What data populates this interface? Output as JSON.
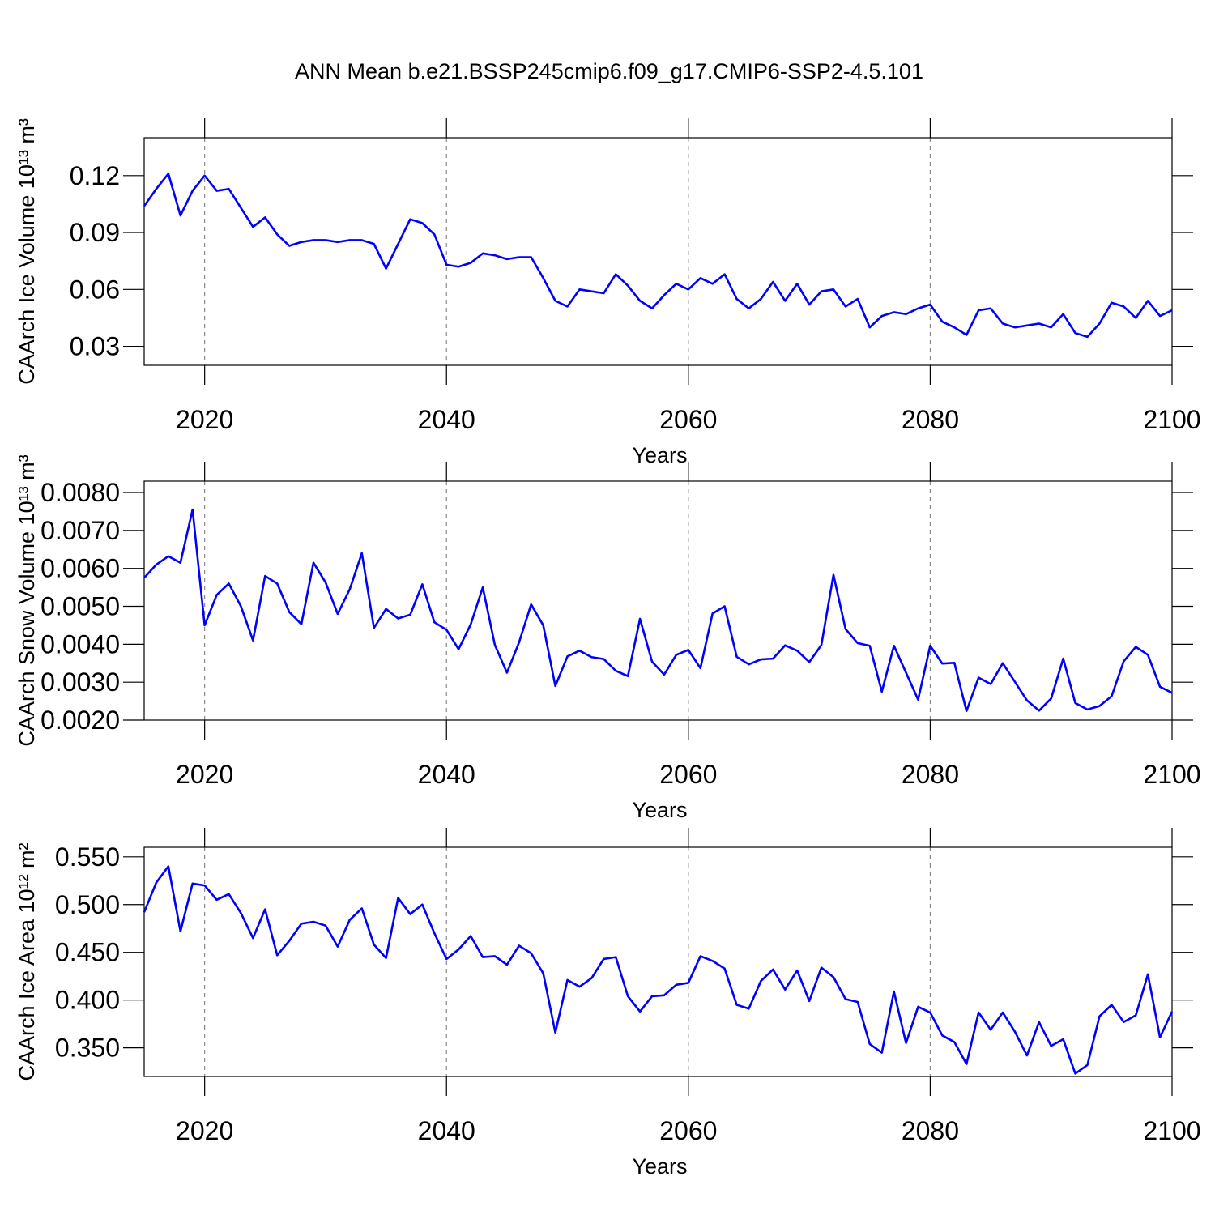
{
  "title": "ANN Mean b.e21.BSSP245cmip6.f09_g17.CMIP6-SSP2-4.5.101",
  "chart_data": [
    {
      "type": "line",
      "ylabel": "CAArch Ice Volume 10¹³ m³",
      "xlabel": "Years",
      "color": "#0000ff",
      "grid": true,
      "xlim": [
        2015,
        2100
      ],
      "xticks": [
        2020,
        2040,
        2060,
        2080,
        2100
      ],
      "ylim": [
        0.02,
        0.14
      ],
      "yticks": [
        0.03,
        0.06,
        0.09,
        0.12
      ],
      "x": [
        2015,
        2016,
        2017,
        2018,
        2019,
        2020,
        2021,
        2022,
        2023,
        2024,
        2025,
        2026,
        2027,
        2028,
        2029,
        2030,
        2031,
        2032,
        2033,
        2034,
        2035,
        2036,
        2037,
        2038,
        2039,
        2040,
        2041,
        2042,
        2043,
        2044,
        2045,
        2046,
        2047,
        2048,
        2049,
        2050,
        2051,
        2052,
        2053,
        2054,
        2055,
        2056,
        2057,
        2058,
        2059,
        2060,
        2061,
        2062,
        2063,
        2064,
        2065,
        2066,
        2067,
        2068,
        2069,
        2070,
        2071,
        2072,
        2073,
        2074,
        2075,
        2076,
        2077,
        2078,
        2079,
        2080,
        2081,
        2082,
        2083,
        2084,
        2085,
        2086,
        2087,
        2088,
        2089,
        2090,
        2091,
        2092,
        2093,
        2094,
        2095,
        2096,
        2097,
        2098,
        2099,
        2100
      ],
      "values": [
        0.104,
        0.113,
        0.121,
        0.099,
        0.112,
        0.12,
        0.112,
        0.113,
        0.103,
        0.093,
        0.098,
        0.089,
        0.083,
        0.085,
        0.086,
        0.086,
        0.085,
        0.086,
        0.086,
        0.084,
        0.071,
        0.084,
        0.097,
        0.095,
        0.089,
        0.073,
        0.072,
        0.074,
        0.079,
        0.078,
        0.076,
        0.077,
        0.077,
        0.066,
        0.054,
        0.051,
        0.06,
        0.059,
        0.058,
        0.068,
        0.062,
        0.054,
        0.05,
        0.057,
        0.063,
        0.06,
        0.066,
        0.063,
        0.068,
        0.055,
        0.05,
        0.055,
        0.064,
        0.054,
        0.063,
        0.052,
        0.059,
        0.06,
        0.051,
        0.055,
        0.04,
        0.046,
        0.048,
        0.047,
        0.05,
        0.052,
        0.043,
        0.04,
        0.036,
        0.049,
        0.05,
        0.042,
        0.04,
        0.041,
        0.042,
        0.04,
        0.047,
        0.037,
        0.035,
        0.042,
        0.053,
        0.051,
        0.045,
        0.054,
        0.046,
        0.049
      ]
    },
    {
      "type": "line",
      "ylabel": "CAArch Snow Volume 10¹³ m³",
      "xlabel": "Years",
      "color": "#0000ff",
      "grid": true,
      "xlim": [
        2015,
        2100
      ],
      "xticks": [
        2020,
        2040,
        2060,
        2080,
        2100
      ],
      "ylim": [
        0.002,
        0.0083
      ],
      "yticks": [
        {
          "value": 0.002,
          "label": "0.0020"
        },
        {
          "value": 0.003,
          "label": "0.0030"
        },
        {
          "value": 0.004,
          "label": "0.0040"
        },
        {
          "value": 0.005,
          "label": "0.0050"
        },
        {
          "value": 0.006,
          "label": "0.0060"
        },
        {
          "value": 0.007,
          "label": "0.0070"
        },
        {
          "value": 0.008,
          "label": "0.0080"
        }
      ],
      "x": [
        2015,
        2016,
        2017,
        2018,
        2019,
        2020,
        2021,
        2022,
        2023,
        2024,
        2025,
        2026,
        2027,
        2028,
        2029,
        2030,
        2031,
        2032,
        2033,
        2034,
        2035,
        2036,
        2037,
        2038,
        2039,
        2040,
        2041,
        2042,
        2043,
        2044,
        2045,
        2046,
        2047,
        2048,
        2049,
        2050,
        2051,
        2052,
        2053,
        2054,
        2055,
        2056,
        2057,
        2058,
        2059,
        2060,
        2061,
        2062,
        2063,
        2064,
        2065,
        2066,
        2067,
        2068,
        2069,
        2070,
        2071,
        2072,
        2073,
        2074,
        2075,
        2076,
        2077,
        2078,
        2079,
        2080,
        2081,
        2082,
        2083,
        2084,
        2085,
        2086,
        2087,
        2088,
        2089,
        2090,
        2091,
        2092,
        2093,
        2094,
        2095,
        2096,
        2097,
        2098,
        2099,
        2100
      ],
      "values": [
        0.00575,
        0.0061,
        0.00632,
        0.00615,
        0.00755,
        0.0045,
        0.0053,
        0.0056,
        0.005,
        0.0041,
        0.0058,
        0.0056,
        0.00485,
        0.00453,
        0.00615,
        0.00563,
        0.0048,
        0.00545,
        0.0064,
        0.00443,
        0.00493,
        0.00468,
        0.00478,
        0.00558,
        0.00458,
        0.00438,
        0.00387,
        0.00452,
        0.0055,
        0.00398,
        0.00325,
        0.00405,
        0.00505,
        0.0045,
        0.0029,
        0.00368,
        0.00383,
        0.00366,
        0.00361,
        0.0033,
        0.00316,
        0.00467,
        0.00354,
        0.0032,
        0.00372,
        0.00385,
        0.00337,
        0.00481,
        0.005,
        0.00367,
        0.00347,
        0.0036,
        0.00362,
        0.00397,
        0.00383,
        0.00353,
        0.00398,
        0.00583,
        0.0044,
        0.00403,
        0.00396,
        0.00275,
        0.00396,
        0.00325,
        0.00254,
        0.00396,
        0.00349,
        0.00351,
        0.00224,
        0.00312,
        0.00295,
        0.0035,
        0.00301,
        0.00252,
        0.00225,
        0.00257,
        0.00362,
        0.00245,
        0.00228,
        0.00237,
        0.00263,
        0.00355,
        0.00393,
        0.00372,
        0.00288,
        0.00272
      ]
    },
    {
      "type": "line",
      "ylabel": "CAArch Ice Area 10¹² m²",
      "xlabel": "Years",
      "color": "#0000ff",
      "grid": true,
      "xlim": [
        2015,
        2100
      ],
      "xticks": [
        2020,
        2040,
        2060,
        2080,
        2100
      ],
      "ylim": [
        0.32,
        0.56
      ],
      "yticks": [
        {
          "value": 0.35,
          "label": "0.350"
        },
        {
          "value": 0.4,
          "label": "0.400"
        },
        {
          "value": 0.45,
          "label": "0.450"
        },
        {
          "value": 0.5,
          "label": "0.500"
        },
        {
          "value": 0.55,
          "label": "0.550"
        }
      ],
      "x": [
        2015,
        2016,
        2017,
        2018,
        2019,
        2020,
        2021,
        2022,
        2023,
        2024,
        2025,
        2026,
        2027,
        2028,
        2029,
        2030,
        2031,
        2032,
        2033,
        2034,
        2035,
        2036,
        2037,
        2038,
        2039,
        2040,
        2041,
        2042,
        2043,
        2044,
        2045,
        2046,
        2047,
        2048,
        2049,
        2050,
        2051,
        2052,
        2053,
        2054,
        2055,
        2056,
        2057,
        2058,
        2059,
        2060,
        2061,
        2062,
        2063,
        2064,
        2065,
        2066,
        2067,
        2068,
        2069,
        2070,
        2071,
        2072,
        2073,
        2074,
        2075,
        2076,
        2077,
        2078,
        2079,
        2080,
        2081,
        2082,
        2083,
        2084,
        2085,
        2086,
        2087,
        2088,
        2089,
        2090,
        2091,
        2092,
        2093,
        2094,
        2095,
        2096,
        2097,
        2098,
        2099,
        2100
      ],
      "values": [
        0.492,
        0.523,
        0.54,
        0.472,
        0.522,
        0.52,
        0.505,
        0.511,
        0.491,
        0.465,
        0.495,
        0.447,
        0.462,
        0.48,
        0.482,
        0.478,
        0.456,
        0.484,
        0.496,
        0.458,
        0.444,
        0.507,
        0.49,
        0.5,
        0.47,
        0.443,
        0.453,
        0.467,
        0.445,
        0.446,
        0.437,
        0.457,
        0.449,
        0.428,
        0.366,
        0.421,
        0.414,
        0.423,
        0.443,
        0.445,
        0.404,
        0.388,
        0.404,
        0.405,
        0.416,
        0.418,
        0.446,
        0.441,
        0.433,
        0.395,
        0.391,
        0.42,
        0.432,
        0.411,
        0.431,
        0.399,
        0.434,
        0.424,
        0.401,
        0.398,
        0.354,
        0.345,
        0.409,
        0.355,
        0.393,
        0.387,
        0.363,
        0.356,
        0.333,
        0.387,
        0.369,
        0.387,
        0.367,
        0.342,
        0.377,
        0.352,
        0.359,
        0.323,
        0.332,
        0.383,
        0.395,
        0.377,
        0.384,
        0.427,
        0.361,
        0.388
      ]
    }
  ]
}
